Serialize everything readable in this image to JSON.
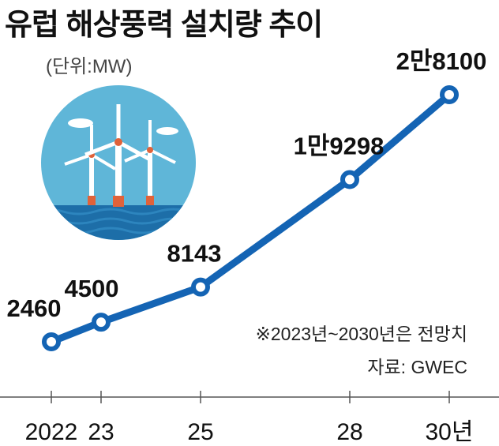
{
  "title": "유럽 해상풍력 설치량 추이",
  "unit": "(단위:MW)",
  "note": "※2023년~2030년은 전망치",
  "source": "자료: GWEC",
  "colors": {
    "line": "#1464b4",
    "marker_fill": "#ffffff",
    "axis": "#555555"
  },
  "illustration": {
    "icon": "offshore-wind-turbines-icon"
  },
  "chart_data": {
    "type": "line",
    "x": [
      2022,
      2023,
      2025,
      2028,
      2030
    ],
    "categories": [
      "2022",
      "23",
      "25",
      "28",
      "30년"
    ],
    "values": [
      2460,
      4500,
      8143,
      19298,
      28100
    ],
    "data_labels": [
      "2460",
      "4500",
      "8143",
      "1만9298",
      "2만8100"
    ],
    "title": "유럽 해상풍력 설치량 추이",
    "ylabel": "(단위:MW)",
    "xlabel": "",
    "grid": false,
    "legend": "none"
  }
}
